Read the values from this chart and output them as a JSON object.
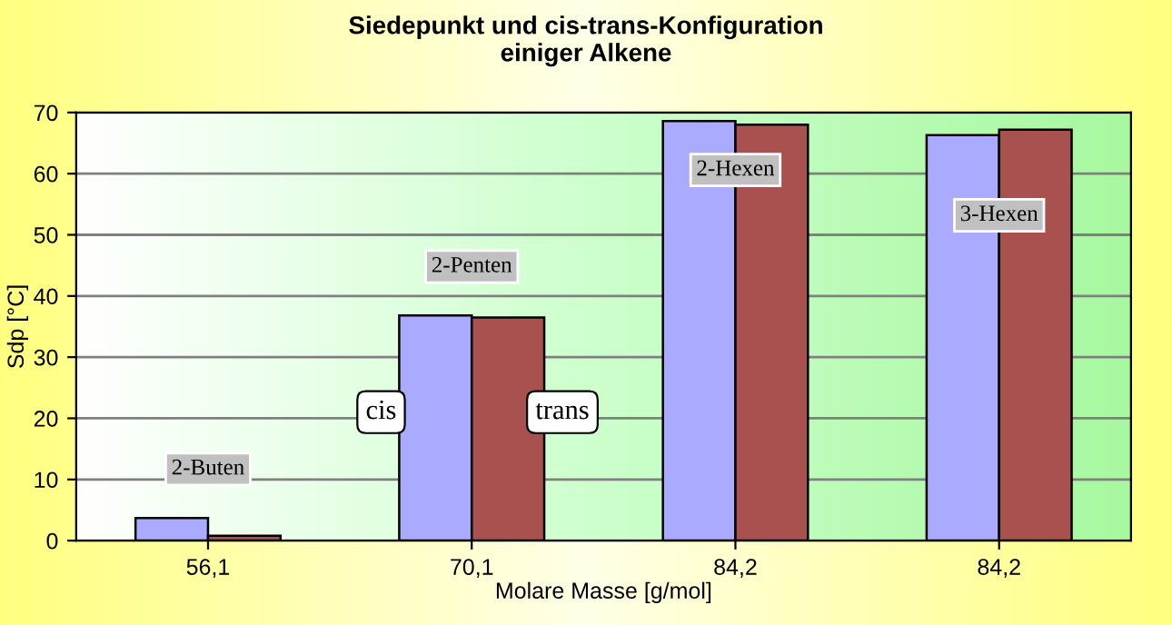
{
  "chart_data": {
    "type": "bar",
    "title": "Siedepunkt und cis-trans-Konfiguration\neiniger Alkene",
    "xlabel": "Molare Masse [g/mol]",
    "ylabel": "Sdp [°C]",
    "categories": [
      "56,1",
      "70,1",
      "84,2",
      "84,2"
    ],
    "series": [
      {
        "name": "cis",
        "color": "#aaaaff",
        "values": [
          3.7,
          36.8,
          68.6,
          66.3
        ]
      },
      {
        "name": "trans",
        "color": "#a8514f",
        "values": [
          0.8,
          36.5,
          68.0,
          67.2
        ]
      }
    ],
    "annotations": [
      "2-Buten",
      "2-Penten",
      "2-Hexen",
      "3-Hexen"
    ],
    "ylim": [
      0,
      70
    ],
    "yticks": [
      0,
      10,
      20,
      30,
      40,
      50,
      60,
      70
    ],
    "grid": "y",
    "legend": false
  }
}
